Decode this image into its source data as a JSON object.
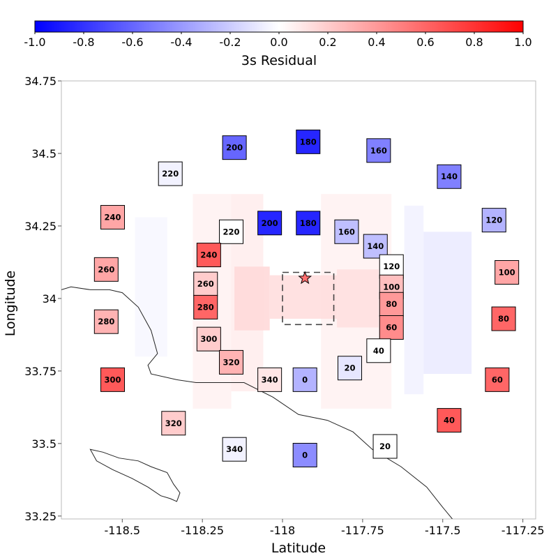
{
  "chart_data": {
    "type": "heatmap",
    "colorbar": {
      "label": "3s Residual",
      "range": [
        -1.0,
        1.0
      ],
      "ticks": [
        "-1.0",
        "-0.8",
        "-0.6",
        "-0.4",
        "-0.2",
        "0.0",
        "0.2",
        "0.4",
        "0.6",
        "0.8",
        "1.0"
      ],
      "colors": [
        "#0000ff",
        "#ffffff",
        "#ff0000"
      ],
      "placement": "top"
    },
    "xlabel": "Latitude",
    "ylabel": "Longitude",
    "xlim": [
      -118.69,
      -117.21
    ],
    "ylim": [
      33.24,
      34.75
    ],
    "x_ticks": [
      "-118.5",
      "-118.25",
      "-118",
      "-117.75",
      "-117.5",
      "-117.25"
    ],
    "y_ticks": [
      "33.25",
      "33.5",
      "33.75",
      "34",
      "34.25",
      "34.5",
      "34.75"
    ],
    "epicenter": {
      "x": -117.93,
      "y": 34.07,
      "color": "#ff6f6f"
    },
    "source_region": {
      "x": [
        -118.0,
        -117.84
      ],
      "y": [
        33.91,
        34.09
      ]
    },
    "background_field": [
      {
        "x": [
          -118.28,
          -118.16
        ],
        "y": [
          33.62,
          34.36
        ],
        "value": 0.05
      },
      {
        "x": [
          -118.16,
          -118.06
        ],
        "y": [
          33.68,
          34.36
        ],
        "value": 0.07
      },
      {
        "x": [
          -117.88,
          -117.66
        ],
        "y": [
          33.62,
          34.36
        ],
        "value": 0.05
      },
      {
        "x": [
          -118.15,
          -118.04
        ],
        "y": [
          33.89,
          34.11
        ],
        "value": 0.15
      },
      {
        "x": [
          -118.04,
          -117.83
        ],
        "y": [
          33.93,
          34.08
        ],
        "value": 0.13
      },
      {
        "x": [
          -117.83,
          -117.7
        ],
        "y": [
          33.9,
          34.1
        ],
        "value": 0.12
      },
      {
        "x": [
          -118.46,
          -118.36
        ],
        "y": [
          33.8,
          34.28
        ],
        "value": -0.03
      },
      {
        "x": [
          -117.62,
          -117.56
        ],
        "y": [
          33.67,
          34.32
        ],
        "value": -0.05
      },
      {
        "x": [
          -117.56,
          -117.41
        ],
        "y": [
          33.74,
          34.23
        ],
        "value": -0.08
      }
    ],
    "stations": [
      {
        "x": -117.92,
        "y": 34.54,
        "label": "180",
        "value": -0.85
      },
      {
        "x": -118.15,
        "y": 34.52,
        "label": "200",
        "value": -0.6
      },
      {
        "x": -117.7,
        "y": 34.51,
        "label": "160",
        "value": -0.5
      },
      {
        "x": -118.35,
        "y": 34.43,
        "label": "220",
        "value": -0.05
      },
      {
        "x": -117.48,
        "y": 34.42,
        "label": "140",
        "value": -0.5
      },
      {
        "x": -118.53,
        "y": 34.28,
        "label": "240",
        "value": 0.35
      },
      {
        "x": -117.34,
        "y": 34.27,
        "label": "120",
        "value": -0.3
      },
      {
        "x": -118.04,
        "y": 34.26,
        "label": "200",
        "value": -0.85
      },
      {
        "x": -117.92,
        "y": 34.26,
        "label": "180",
        "value": -0.85
      },
      {
        "x": -118.16,
        "y": 34.23,
        "label": "220",
        "value": 0.0
      },
      {
        "x": -117.8,
        "y": 34.23,
        "label": "160",
        "value": -0.25
      },
      {
        "x": -117.71,
        "y": 34.18,
        "label": "140",
        "value": -0.25
      },
      {
        "x": -118.23,
        "y": 34.15,
        "label": "240",
        "value": 0.65
      },
      {
        "x": -117.66,
        "y": 34.11,
        "label": "120",
        "value": 0.0
      },
      {
        "x": -118.55,
        "y": 34.1,
        "label": "260",
        "value": 0.35
      },
      {
        "x": -117.3,
        "y": 34.09,
        "label": "100",
        "value": 0.35
      },
      {
        "x": -118.24,
        "y": 34.05,
        "label": "260",
        "value": 0.2
      },
      {
        "x": -117.66,
        "y": 34.04,
        "label": "100",
        "value": 0.25
      },
      {
        "x": -117.66,
        "y": 33.98,
        "label": "80",
        "value": 0.4
      },
      {
        "x": -118.24,
        "y": 33.97,
        "label": "280",
        "value": 0.6
      },
      {
        "x": -117.31,
        "y": 33.93,
        "label": "80",
        "value": 0.6
      },
      {
        "x": -118.55,
        "y": 33.92,
        "label": "280",
        "value": 0.3
      },
      {
        "x": -117.66,
        "y": 33.9,
        "label": "60",
        "value": 0.45
      },
      {
        "x": -118.23,
        "y": 33.86,
        "label": "300",
        "value": 0.2
      },
      {
        "x": -117.7,
        "y": 33.82,
        "label": "40",
        "value": 0.0
      },
      {
        "x": -118.16,
        "y": 33.78,
        "label": "320",
        "value": 0.3
      },
      {
        "x": -117.79,
        "y": 33.76,
        "label": "20",
        "value": -0.1
      },
      {
        "x": -118.04,
        "y": 33.72,
        "label": "340",
        "value": 0.1
      },
      {
        "x": -117.93,
        "y": 33.72,
        "label": "0",
        "value": -0.3
      },
      {
        "x": -118.53,
        "y": 33.72,
        "label": "300",
        "value": 0.65
      },
      {
        "x": -117.33,
        "y": 33.72,
        "label": "60",
        "value": 0.6
      },
      {
        "x": -117.48,
        "y": 33.58,
        "label": "40",
        "value": 0.65
      },
      {
        "x": -118.34,
        "y": 33.57,
        "label": "320",
        "value": 0.2
      },
      {
        "x": -118.15,
        "y": 33.48,
        "label": "340",
        "value": -0.05
      },
      {
        "x": -117.93,
        "y": 33.46,
        "label": "0",
        "value": -0.45
      },
      {
        "x": -117.68,
        "y": 33.49,
        "label": "20",
        "value": 0.0
      }
    ],
    "coastline": [
      [
        -118.69,
        34.03
      ],
      [
        -118.66,
        34.04
      ],
      [
        -118.6,
        34.03
      ],
      [
        -118.54,
        34.03
      ],
      [
        -118.5,
        34.02
      ],
      [
        -118.45,
        33.97
      ],
      [
        -118.41,
        33.89
      ],
      [
        -118.39,
        33.81
      ],
      [
        -118.42,
        33.77
      ],
      [
        -118.41,
        33.74
      ],
      [
        -118.33,
        33.72
      ],
      [
        -118.27,
        33.71
      ],
      [
        -118.18,
        33.71
      ],
      [
        -118.12,
        33.71
      ],
      [
        -118.03,
        33.66
      ],
      [
        -117.95,
        33.6
      ],
      [
        -117.86,
        33.58
      ],
      [
        -117.78,
        33.54
      ],
      [
        -117.72,
        33.48
      ],
      [
        -117.63,
        33.42
      ],
      [
        -117.55,
        33.35
      ],
      [
        -117.5,
        33.28
      ],
      [
        -117.47,
        33.24
      ]
    ],
    "island": [
      [
        -118.6,
        33.48
      ],
      [
        -118.56,
        33.47
      ],
      [
        -118.51,
        33.45
      ],
      [
        -118.45,
        33.44
      ],
      [
        -118.41,
        33.42
      ],
      [
        -118.36,
        33.4
      ],
      [
        -118.34,
        33.36
      ],
      [
        -118.32,
        33.33
      ],
      [
        -118.33,
        33.3
      ],
      [
        -118.35,
        33.31
      ],
      [
        -118.38,
        33.32
      ],
      [
        -118.42,
        33.35
      ],
      [
        -118.47,
        33.38
      ],
      [
        -118.53,
        33.41
      ],
      [
        -118.58,
        33.44
      ],
      [
        -118.6,
        33.48
      ]
    ]
  }
}
